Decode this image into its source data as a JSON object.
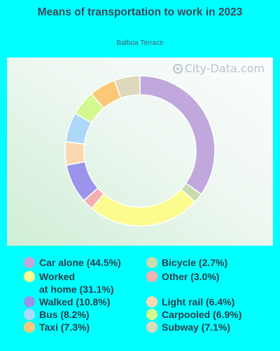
{
  "chart_data": {
    "type": "pie",
    "title": "Means of transportation to work in 2023",
    "subtitle": "Balboa Terrace",
    "legend_position": "bottom",
    "slices": [
      {
        "label": "Car alone",
        "value": 44.5,
        "color": "#c0a8dc",
        "legend": "Car alone (44.5%)"
      },
      {
        "label": "Bicycle",
        "value": 2.7,
        "color": "#c9dcb0",
        "legend": "Bicycle (2.7%)"
      },
      {
        "label": "Worked at home",
        "value": 31.1,
        "color": "#fcfc8e",
        "legend": "Worked\nat home (31.1%)"
      },
      {
        "label": "Other",
        "value": 3.0,
        "color": "#f5b0b0",
        "legend": "Other (3.0%)"
      },
      {
        "label": "Walked",
        "value": 10.8,
        "color": "#9b93ec",
        "legend": "Walked (10.8%)"
      },
      {
        "label": "Light rail",
        "value": 6.4,
        "color": "#fcd8b0",
        "legend": "Light rail (6.4%)"
      },
      {
        "label": "Bus",
        "value": 8.2,
        "color": "#add8f8",
        "legend": "Bus (8.2%)"
      },
      {
        "label": "Carpooled",
        "value": 6.9,
        "color": "#d4f88e",
        "legend": "Carpooled (6.9%)"
      },
      {
        "label": "Taxi",
        "value": 7.3,
        "color": "#fcc878",
        "legend": "Taxi (7.3%)"
      },
      {
        "label": "Subway",
        "value": 7.1,
        "color": "#ded8bc",
        "legend": "Subway (7.1%)"
      }
    ],
    "ring_order": [
      "Car alone",
      "Bicycle",
      "Worked at home",
      "Other",
      "Walked",
      "Light rail",
      "Bus",
      "Carpooled",
      "Taxi",
      "Subway"
    ],
    "legend_columns": [
      [
        "Car alone",
        "Worked at home",
        "Walked",
        "Bus",
        "Taxi"
      ],
      [
        "Bicycle",
        "Other",
        "Light rail",
        "Carpooled",
        "Subway"
      ]
    ]
  },
  "watermark": "City-Data.com",
  "watermark_icon": "city-data-logo-icon"
}
